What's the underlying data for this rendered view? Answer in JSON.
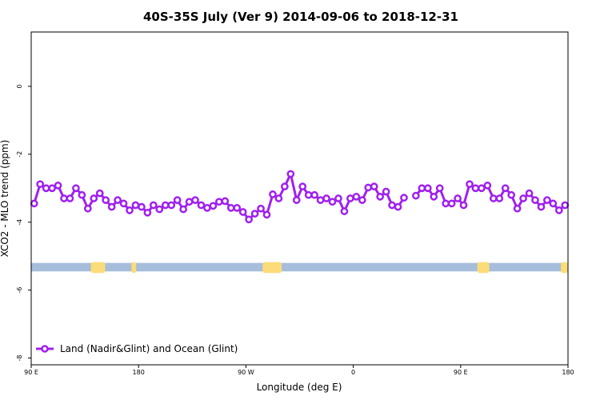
{
  "chart_data": {
    "type": "line",
    "title": "40S-35S July (Ver 9)   2014-09-06 to 2018-12-31",
    "xlabel": "Longitude (deg E)",
    "ylabel": "XCO2 - MLO trend (ppm)",
    "xlim": [
      90,
      450
    ],
    "ylim": [
      -8.2,
      1.6
    ],
    "x_ticks": [
      {
        "value": 90,
        "label": "90 E"
      },
      {
        "value": 180,
        "label": "180"
      },
      {
        "value": 270,
        "label": "90 W"
      },
      {
        "value": 360,
        "label": "0"
      },
      {
        "value": 450,
        "label": "90 E"
      },
      {
        "value": 540,
        "label": "180"
      }
    ],
    "y_ticks": [
      {
        "value": 0,
        "label": "0"
      },
      {
        "value": -2,
        "label": "-2"
      },
      {
        "value": -4,
        "label": "-4"
      },
      {
        "value": -6,
        "label": "-6"
      },
      {
        "value": -8,
        "label": "-8"
      }
    ],
    "xlim_display": [
      90,
      540
    ],
    "grid": false,
    "legend_position": "bottom-left",
    "series": [
      {
        "name": "Land (Nadir&Glint) and Ocean (Glint)",
        "color": "#a020f0",
        "marker": "open-circle",
        "segments": [
          {
            "x": [
              92.5,
              97.5,
              102.5,
              107.5,
              112.5,
              117.5,
              122.5,
              127.5,
              132.5,
              137.5,
              142.5,
              147.5,
              152.5,
              157.5,
              162.5,
              167.5,
              172.5,
              177.5,
              182.5,
              187.5,
              192.5,
              197.5,
              202.5,
              207.5,
              212.5,
              217.5,
              222.5,
              227.5,
              232.5,
              237.5,
              242.5,
              247.5,
              252.5,
              257.5,
              262.5,
              267.5,
              272.5,
              277.5,
              282.5,
              287.5,
              292.5,
              297.5,
              302.5,
              307.5,
              312.5,
              317.5,
              322.5,
              327.5,
              332.5,
              337.5,
              342.5,
              347.5,
              352.5,
              357.5,
              362.5,
              367.5,
              372.5,
              377.5,
              382.5,
              387.5,
              392.5,
              397.5,
              402.5
            ],
            "y": [
              -3.45,
              -2.88,
              -3.0,
              -3.0,
              -2.92,
              -3.3,
              -3.3,
              -3.0,
              -3.2,
              -3.6,
              -3.3,
              -3.15,
              -3.35,
              -3.55,
              -3.35,
              -3.45,
              -3.65,
              -3.5,
              -3.55,
              -3.72,
              -3.5,
              -3.62,
              -3.5,
              -3.5,
              -3.35,
              -3.62,
              -3.4,
              -3.35,
              -3.5,
              -3.58,
              -3.52,
              -3.4,
              -3.38,
              -3.58,
              -3.58,
              -3.7,
              -3.92,
              -3.75,
              -3.6,
              -3.78,
              -3.18,
              -3.3,
              -2.95,
              -2.58,
              -3.35,
              -2.95,
              -3.2,
              -3.2,
              -3.35,
              -3.3,
              -3.4,
              -3.3,
              -3.68,
              -3.3,
              -3.25,
              -3.35,
              -2.98,
              -2.95,
              -3.25,
              -3.1,
              -3.5,
              -3.55,
              -3.28
            ]
          },
          {
            "x": [
              412.5,
              417.5,
              422.5,
              427.5,
              432.5,
              437.5,
              442.5,
              447.5,
              452.5,
              457.5,
              462.5,
              467.5,
              472.5,
              477.5,
              482.5,
              487.5,
              492.5,
              497.5,
              502.5,
              507.5,
              512.5,
              517.5,
              522.5,
              527.5,
              532.5,
              537.5
            ],
            "y": [
              -3.22,
              -3.0,
              -3.0,
              -3.25,
              -3.0,
              -3.45,
              -3.45,
              -3.3,
              -3.5,
              -2.88,
              -3.0,
              -3.0,
              -2.92,
              -3.3,
              -3.3,
              -3.0,
              -3.2,
              -3.6,
              -3.3,
              -3.15,
              -3.35,
              -3.55,
              -3.35,
              -3.45,
              -3.65,
              -3.5
            ]
          }
        ]
      }
    ],
    "land_ocean_strip": {
      "y_top": -5.2,
      "y_bottom": -5.45,
      "ocean_color": "#a6bddb",
      "land_color": "#fcdc78",
      "land_ranges": [
        [
          140,
          152
        ],
        [
          174,
          178
        ],
        [
          284,
          300
        ],
        [
          464,
          474
        ],
        [
          534,
          540
        ]
      ]
    }
  }
}
